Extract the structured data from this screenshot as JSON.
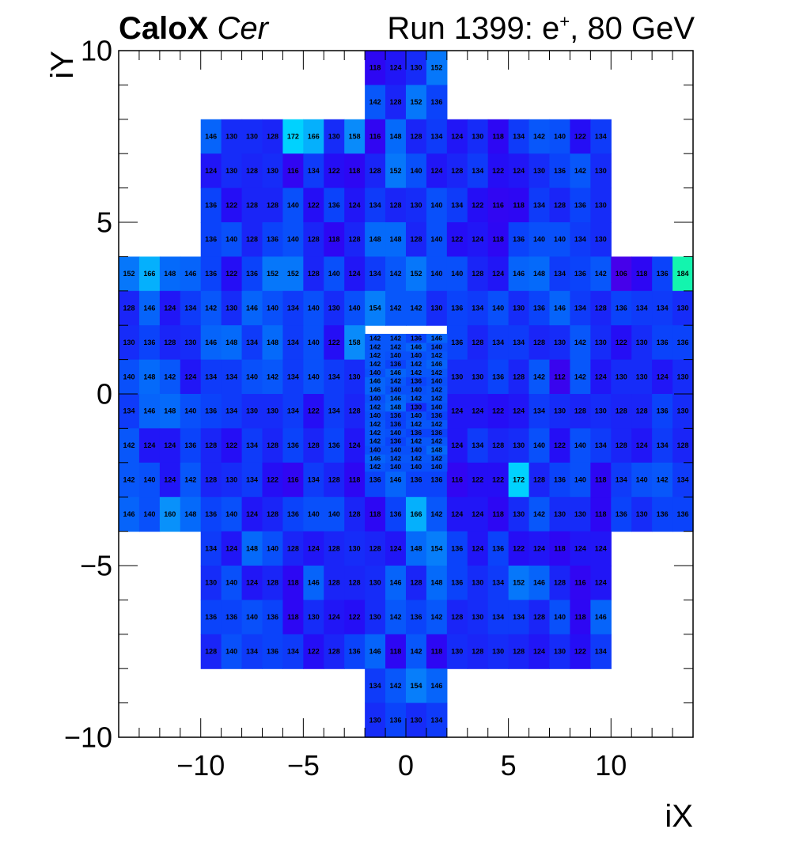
{
  "title": {
    "experiment": "CaloX",
    "channel": "Cer",
    "run_prefix": "Run 1399: e",
    "particle_charge": "+",
    "run_suffix": ", 80 GeV"
  },
  "colors": {
    "palette_low": "#4a00e8",
    "palette_mid": "#0a46fa",
    "palette_high": "#15f7a8",
    "cell_text": "#000000",
    "frame": "#000000",
    "background": "#ffffff"
  },
  "chart_data": {
    "type": "heatmap",
    "xlabel": "iX",
    "ylabel": "iY",
    "xlim": [
      -14,
      14
    ],
    "ylim": [
      -10,
      10
    ],
    "x_ticks": [
      -10,
      -5,
      0,
      5,
      10
    ],
    "x_tick_labels": [
      "−10",
      "−5",
      "0",
      "5",
      "10"
    ],
    "y_ticks": [
      -10,
      -5,
      0,
      5,
      10
    ],
    "y_tick_labels": [
      "−10",
      "−5",
      "0",
      "5",
      "10"
    ],
    "z_range": [
      104,
      186
    ],
    "row_groups": [
      {
        "y0": 9,
        "x0": -2,
        "dy": 1,
        "dx": 1,
        "values": [
          [
            118,
            124,
            130,
            152
          ]
        ]
      },
      {
        "y0": 8,
        "x0": -2,
        "dy": 1,
        "dx": 1,
        "values": [
          [
            142,
            128,
            152,
            136
          ]
        ]
      },
      {
        "y0": 7,
        "x0": -10,
        "dy": 1,
        "dx": 1,
        "values": [
          [
            146,
            130,
            130,
            128,
            172,
            166,
            130,
            158,
            116,
            148,
            128,
            134,
            124,
            130,
            118,
            134,
            142,
            140,
            122,
            134
          ]
        ]
      },
      {
        "y0": 6,
        "x0": -10,
        "dy": 1,
        "dx": 1,
        "values": [
          [
            124,
            130,
            128,
            130,
            116,
            134,
            122,
            118,
            128,
            152,
            140,
            124,
            128,
            134,
            122,
            124,
            130,
            136,
            142,
            130
          ]
        ]
      },
      {
        "y0": 5,
        "x0": -10,
        "dy": 1,
        "dx": 1,
        "values": [
          [
            136,
            122,
            128,
            128,
            140,
            122,
            136,
            124,
            134,
            128,
            130,
            140,
            134,
            122,
            116,
            118,
            134,
            128,
            136,
            130
          ]
        ]
      },
      {
        "y0": 4,
        "x0": -10,
        "dy": 1,
        "dx": 1,
        "values": [
          [
            136,
            140,
            128,
            136,
            140,
            128,
            118,
            128,
            148,
            148,
            128,
            140,
            122,
            124,
            118,
            136,
            140,
            140,
            134,
            130
          ]
        ]
      },
      {
        "y0": 3,
        "x0": -14,
        "dy": 1,
        "dx": 1,
        "values": [
          [
            152,
            166,
            148,
            146,
            136,
            122,
            136,
            152,
            152,
            128,
            140,
            124,
            134,
            142,
            152,
            140,
            140,
            128,
            124,
            146,
            148,
            134,
            136,
            142,
            106,
            118,
            136,
            184
          ]
        ]
      },
      {
        "y0": 2,
        "x0": -14,
        "dy": 1,
        "dx": 1,
        "values": [
          [
            128,
            146,
            124,
            134,
            142,
            130,
            146,
            140,
            134,
            140,
            130,
            140,
            154,
            142,
            142,
            130,
            136,
            134,
            140,
            130,
            136,
            146,
            134,
            128,
            136,
            134,
            134,
            130
          ]
        ]
      },
      {
        "y0": 1,
        "x0": -14,
        "dy": 1,
        "dx": 1,
        "values": [
          [
            130,
            136,
            128,
            130,
            146,
            148,
            134,
            148,
            134,
            140,
            122,
            158,
            0,
            0,
            0,
            0,
            136,
            128,
            134,
            134,
            128,
            130,
            142,
            130,
            122,
            130,
            136,
            136
          ]
        ]
      },
      {
        "y0": 0,
        "x0": -14,
        "dy": 1,
        "dx": 1,
        "values": [
          [
            140,
            148,
            142,
            124,
            134,
            134,
            140,
            142,
            134,
            140,
            134,
            130,
            0,
            0,
            0,
            0,
            130,
            130,
            136,
            128,
            142,
            112,
            142,
            124,
            130,
            130,
            124,
            130
          ]
        ]
      },
      {
        "y0": -1,
        "x0": -14,
        "dy": 1,
        "dx": 1,
        "values": [
          [
            134,
            146,
            148,
            140,
            136,
            134,
            130,
            130,
            134,
            122,
            134,
            128,
            0,
            0,
            0,
            0,
            124,
            124,
            122,
            124,
            134,
            130,
            128,
            130,
            128,
            128,
            136,
            130
          ]
        ]
      },
      {
        "y0": -2,
        "x0": -14,
        "dy": 1,
        "dx": 1,
        "values": [
          [
            142,
            124,
            124,
            136,
            128,
            122,
            134,
            128,
            136,
            128,
            136,
            124,
            0,
            0,
            0,
            0,
            124,
            134,
            128,
            130,
            140,
            122,
            140,
            134,
            128,
            124,
            134,
            128
          ]
        ]
      },
      {
        "y0": -3,
        "x0": -14,
        "dy": 1,
        "dx": 1,
        "values": [
          [
            142,
            140,
            124,
            142,
            128,
            130,
            134,
            122,
            116,
            134,
            128,
            118,
            136,
            146,
            136,
            136,
            116,
            122,
            122,
            172,
            128,
            136,
            140,
            118,
            134,
            140,
            142,
            134
          ]
        ]
      },
      {
        "y0": -4,
        "x0": -14,
        "dy": 1,
        "dx": 1,
        "values": [
          [
            146,
            140,
            160,
            148,
            136,
            140,
            124,
            128,
            136,
            140,
            140,
            128,
            118,
            136,
            166,
            142,
            124,
            124,
            118,
            130,
            142,
            130,
            130,
            118,
            136,
            130,
            136,
            136
          ]
        ]
      },
      {
        "y0": -5,
        "x0": -10,
        "dy": 1,
        "dx": 1,
        "values": [
          [
            134,
            124,
            148,
            140,
            128,
            124,
            128,
            130,
            128,
            124,
            148,
            154,
            136,
            124,
            136,
            122,
            124,
            118,
            124,
            124
          ]
        ]
      },
      {
        "y0": -6,
        "x0": -10,
        "dy": 1,
        "dx": 1,
        "values": [
          [
            130,
            140,
            124,
            128,
            118,
            146,
            128,
            128,
            130,
            146,
            128,
            148,
            136,
            130,
            134,
            152,
            146,
            128,
            116,
            124
          ]
        ]
      },
      {
        "y0": -7,
        "x0": -10,
        "dy": 1,
        "dx": 1,
        "values": [
          [
            136,
            136,
            140,
            136,
            118,
            130,
            124,
            122,
            130,
            142,
            136,
            142,
            128,
            130,
            134,
            134,
            128,
            140,
            118,
            146
          ]
        ]
      },
      {
        "y0": -8,
        "x0": -10,
        "dy": 1,
        "dx": 1,
        "values": [
          [
            128,
            140,
            134,
            136,
            134,
            122,
            128,
            136,
            146,
            118,
            142,
            118,
            130,
            128,
            130,
            128,
            124,
            130,
            122,
            134
          ]
        ]
      },
      {
        "y0": -9,
        "x0": -2,
        "dy": 1,
        "dx": 1,
        "values": [
          [
            134,
            142,
            154,
            146
          ]
        ]
      },
      {
        "y0": -10,
        "x0": -2,
        "dy": 1,
        "dx": 1,
        "values": [
          [
            130,
            136,
            130,
            134
          ]
        ]
      },
      {
        "y0": -2.25,
        "x0": -2,
        "dy": 0.25,
        "dx": 1,
        "values": [
          [
            142,
            140,
            140,
            140
          ],
          [
            146,
            142,
            142,
            142
          ],
          [
            140,
            140,
            140,
            148
          ],
          [
            142,
            136,
            142,
            142
          ],
          [
            142,
            140,
            136,
            136
          ],
          [
            142,
            136,
            142,
            142
          ],
          [
            140,
            136,
            140,
            136
          ],
          [
            142,
            148,
            130,
            140
          ],
          [
            140,
            146,
            142,
            142
          ],
          [
            146,
            140,
            140,
            142
          ],
          [
            146,
            142,
            136,
            140
          ],
          [
            140,
            146,
            142,
            142
          ],
          [
            142,
            136,
            142,
            146
          ],
          [
            142,
            140,
            140,
            142
          ],
          [
            142,
            142,
            146,
            140
          ],
          [
            142,
            142,
            136,
            146
          ]
        ]
      }
    ]
  }
}
